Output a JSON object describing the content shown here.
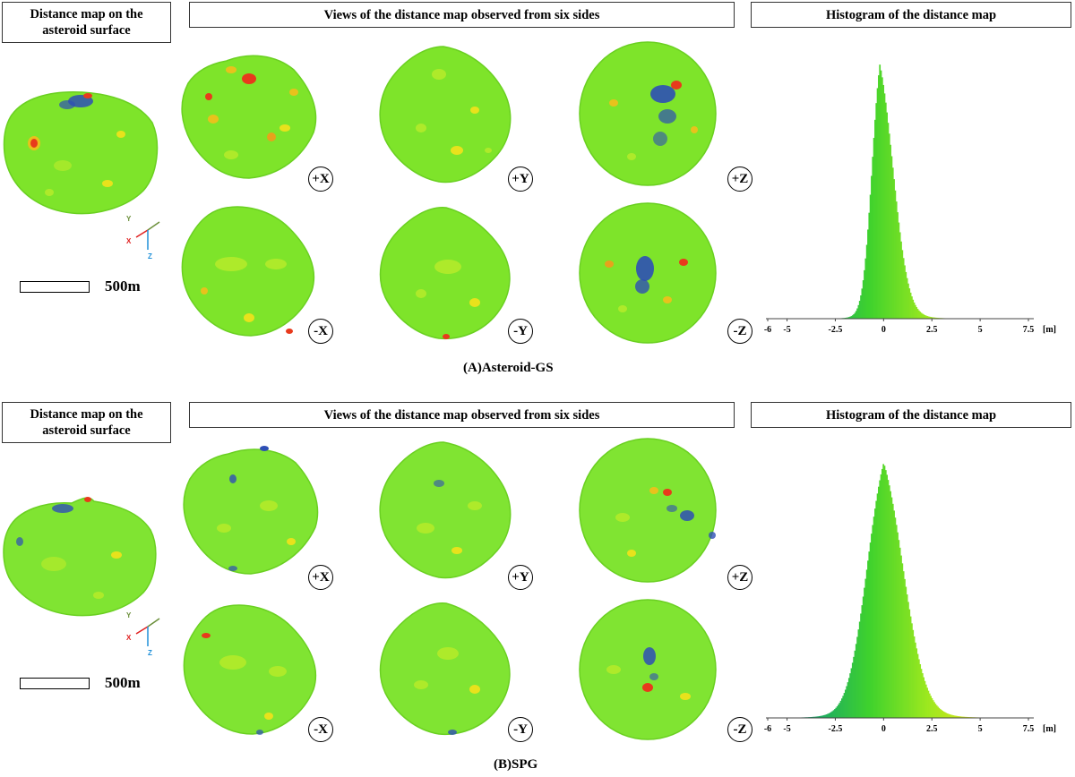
{
  "panels": [
    {
      "id": "A",
      "caption": "(A)Asteroid-GS",
      "surface_title_line1": "Distance map on the",
      "surface_title_line2": "asteroid surface",
      "views_title": "Views of the distance map observed from six sides",
      "hist_title": "Histogram of the distance map",
      "scale_label": "500m",
      "axes": {
        "x": "X",
        "y": "Y",
        "z": "Z"
      },
      "view_labels": [
        "+X",
        "+Y",
        "+Z",
        "-X",
        "-Y",
        "-Z"
      ],
      "colors": {
        "base": "#7ee42a",
        "high": "#e83a1c",
        "low": "#2e4fb5"
      }
    },
    {
      "id": "B",
      "caption": "(B)SPG",
      "surface_title_line1": "Distance map on the",
      "surface_title_line2": "asteroid surface",
      "views_title": "Views of the distance map observed from six sides",
      "hist_title": "Histogram of the distance map",
      "scale_label": "500m",
      "axes": {
        "x": "X",
        "y": "Y",
        "z": "Z"
      },
      "view_labels": [
        "+X",
        "+Y",
        "+Z",
        "-X",
        "-Y",
        "-Z"
      ],
      "colors": {
        "base": "#80e432",
        "high": "#e83a1c",
        "low": "#2e4fb5"
      }
    }
  ],
  "chart_data": [
    {
      "type": "bar",
      "title": "Histogram of the distance map",
      "xlabel": "[m]",
      "xlim": [
        -6,
        7.5
      ],
      "xticks": [
        "-6",
        "-5",
        "-2.5",
        "0",
        "2.5",
        "5",
        "7.5"
      ],
      "unit_label": "[m]",
      "distribution": {
        "mode": -0.2,
        "spread_left": 0.45,
        "spread_right": 0.75,
        "peak_height": 1.0
      },
      "colormap": [
        "#1f6fa8",
        "#19a66a",
        "#3fd22d",
        "#9be81f",
        "#e5e51a"
      ]
    },
    {
      "type": "bar",
      "title": "Histogram of the distance map",
      "xlabel": "[m]",
      "xlim": [
        -6,
        7.5
      ],
      "xticks": [
        "-6",
        "-5",
        "-2.5",
        "0",
        "2.5",
        "5",
        "7.5"
      ],
      "unit_label": "[m]",
      "distribution": {
        "mode": 0.0,
        "spread_left": 0.95,
        "spread_right": 1.1,
        "peak_height": 1.0
      },
      "colormap": [
        "#1f6fa8",
        "#19a66a",
        "#3fd22d",
        "#9be81f",
        "#e5e51a"
      ]
    }
  ]
}
